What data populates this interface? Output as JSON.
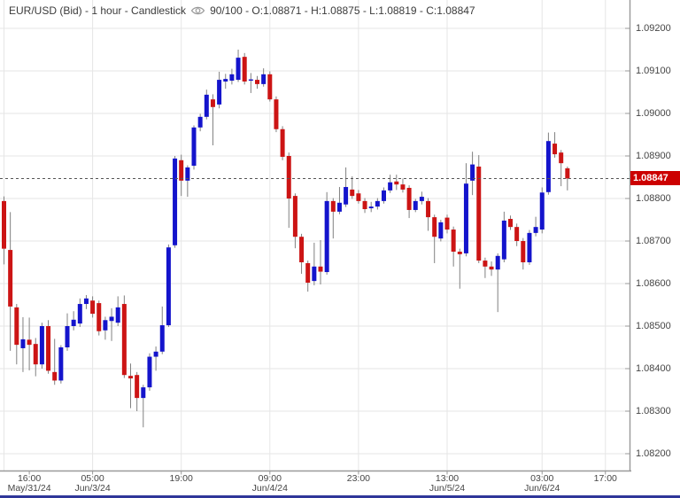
{
  "title_bar": {
    "instrument_title": "EUR/USD (Bid) - 1 hour - Candlestick",
    "eye_icon": "visibility-eye",
    "bars_info": "90/100 - O:1.08871 - H:1.08875 - L:1.08819 - C:1.08847"
  },
  "price_axis": {
    "labels": [
      "1.09200",
      "1.09100",
      "1.09000",
      "1.08900",
      "1.08800",
      "1.08700",
      "1.08600",
      "1.08500",
      "1.08400",
      "1.08300",
      "1.08200"
    ],
    "badge": "1.08847"
  },
  "time_axis": {
    "labels": [
      {
        "slot": 4,
        "time": "16:00",
        "date": "May/31/24"
      },
      {
        "slot": 14,
        "time": "05:00",
        "date": "Jun/3/24"
      },
      {
        "slot": 28,
        "time": "19:00",
        "date": ""
      },
      {
        "slot": 42,
        "time": "09:00",
        "date": "Jun/4/24"
      },
      {
        "slot": 56,
        "time": "23:00",
        "date": ""
      },
      {
        "slot": 70,
        "time": "13:00",
        "date": "Jun/5/24"
      },
      {
        "slot": 85,
        "time": "03:00",
        "date": "Jun/6/24"
      },
      {
        "slot": 95,
        "time": "17:00",
        "date": ""
      }
    ],
    "gridline_slots": [
      0,
      14,
      28,
      42,
      56,
      70,
      85,
      95
    ]
  },
  "colors": {
    "bull": "#1414cc",
    "bear": "#cc1414",
    "wick": "#808080",
    "grid": "#e6e6e6",
    "axis_line": "#999999",
    "text": "#454545",
    "price_line": "#555555",
    "badge_bg": "#cc0000",
    "badge_text": "#ffffff",
    "bottom_bar": "#2f3699"
  },
  "chart_data": {
    "type": "candlestick",
    "symbol": "EUR/USD (Bid)",
    "timeframe": "1 hour",
    "bars_visible": "90/100",
    "current_price": 1.08847,
    "last_bar": {
      "open": 1.08871,
      "high": 1.08875,
      "low": 1.08819,
      "close": 1.08847
    },
    "y_axis": {
      "min": 1.082,
      "max": 1.092,
      "tick_step": 0.001
    },
    "total_slots": 100,
    "legend_position": "none",
    "grid": true,
    "candles_ohlc": [
      [
        1.08794,
        1.08805,
        1.08645,
        1.08682
      ],
      [
        1.08679,
        1.08768,
        1.08442,
        1.08546
      ],
      [
        1.08544,
        1.08552,
        1.0841,
        1.08456
      ],
      [
        1.08448,
        1.08521,
        1.08392,
        1.08469
      ],
      [
        1.08468,
        1.0852,
        1.08396,
        1.08456
      ],
      [
        1.08458,
        1.08472,
        1.08382,
        1.0841
      ],
      [
        1.0841,
        1.08508,
        1.084,
        1.085
      ],
      [
        1.085,
        1.08514,
        1.08388,
        1.08395
      ],
      [
        1.08392,
        1.0847,
        1.08362,
        1.08372
      ],
      [
        1.08372,
        1.08455,
        1.08365,
        1.0845
      ],
      [
        1.0845,
        1.0853,
        1.08442,
        1.085
      ],
      [
        1.085,
        1.08535,
        1.0849,
        1.08515
      ],
      [
        1.08506,
        1.08565,
        1.08498,
        1.08552
      ],
      [
        1.08552,
        1.08573,
        1.0854,
        1.08565
      ],
      [
        1.0856,
        1.0857,
        1.0852,
        1.08529
      ],
      [
        1.08554,
        1.0856,
        1.08478,
        1.08488
      ],
      [
        1.0849,
        1.08522,
        1.08468,
        1.08514
      ],
      [
        1.08512,
        1.08542,
        1.08465,
        1.08522
      ],
      [
        1.08508,
        1.0857,
        1.085,
        1.08544
      ],
      [
        1.08552,
        1.08572,
        1.08378,
        1.08385
      ],
      [
        1.08383,
        1.08412,
        1.08307,
        1.08377
      ],
      [
        1.08385,
        1.08392,
        1.083,
        1.08331
      ],
      [
        1.08331,
        1.08362,
        1.08262,
        1.08356
      ],
      [
        1.08356,
        1.08436,
        1.08348,
        1.08428
      ],
      [
        1.08428,
        1.08452,
        1.08395,
        1.0844
      ],
      [
        1.0844,
        1.08546,
        1.08434,
        1.08502
      ],
      [
        1.08502,
        1.08692,
        1.08498,
        1.08685
      ],
      [
        1.0869,
        1.089,
        1.08684,
        1.08894
      ],
      [
        1.0889,
        1.08903,
        1.08806,
        1.08842
      ],
      [
        1.08842,
        1.08878,
        1.08804,
        1.08873
      ],
      [
        1.08877,
        1.08972,
        1.08868,
        1.08967
      ],
      [
        1.08967,
        1.08999,
        1.08958,
        1.08992
      ],
      [
        1.08992,
        1.09056,
        1.08986,
        1.09044
      ],
      [
        1.09033,
        1.09045,
        1.08925,
        1.09015
      ],
      [
        1.09021,
        1.09098,
        1.09012,
        1.09079
      ],
      [
        1.09075,
        1.09093,
        1.09058,
        1.09081
      ],
      [
        1.09077,
        1.09105,
        1.09068,
        1.09092
      ],
      [
        1.09079,
        1.0915,
        1.09074,
        1.09131
      ],
      [
        1.09133,
        1.09142,
        1.09068,
        1.09075
      ],
      [
        1.09077,
        1.09095,
        1.09048,
        1.0908
      ],
      [
        1.09079,
        1.09088,
        1.09058,
        1.09069
      ],
      [
        1.09069,
        1.09106,
        1.09063,
        1.09092
      ],
      [
        1.09092,
        1.09099,
        1.09028,
        1.09033
      ],
      [
        1.09033,
        1.0904,
        1.08956,
        1.08963
      ],
      [
        1.08963,
        1.0897,
        1.0889,
        1.08898
      ],
      [
        1.089,
        1.08908,
        1.08731,
        1.088
      ],
      [
        1.08806,
        1.08812,
        1.08683,
        1.0871
      ],
      [
        1.0871,
        1.08717,
        1.08623,
        1.0865
      ],
      [
        1.08648,
        1.08654,
        1.08581,
        1.08602
      ],
      [
        1.08606,
        1.08696,
        1.08596,
        1.0864
      ],
      [
        1.0864,
        1.08702,
        1.08598,
        1.08628
      ],
      [
        1.08627,
        1.08815,
        1.08621,
        1.08794
      ],
      [
        1.08794,
        1.08801,
        1.08706,
        1.08769
      ],
      [
        1.08769,
        1.08827,
        1.08763,
        1.0879
      ],
      [
        1.08786,
        1.08873,
        1.0878,
        1.08827
      ],
      [
        1.08821,
        1.08852,
        1.08799,
        1.08806
      ],
      [
        1.08812,
        1.0882,
        1.08788,
        1.08794
      ],
      [
        1.08794,
        1.08801,
        1.08766,
        1.08775
      ],
      [
        1.08777,
        1.08792,
        1.08768,
        1.08781
      ],
      [
        1.08781,
        1.08801,
        1.08774,
        1.08794
      ],
      [
        1.08794,
        1.08826,
        1.08788,
        1.08819
      ],
      [
        1.08819,
        1.08856,
        1.08813,
        1.08838
      ],
      [
        1.0884,
        1.08856,
        1.0882,
        1.08833
      ],
      [
        1.08833,
        1.08847,
        1.08814,
        1.08821
      ],
      [
        1.08825,
        1.08831,
        1.08754,
        1.08773
      ],
      [
        1.08773,
        1.08799,
        1.08768,
        1.08794
      ],
      [
        1.08794,
        1.08816,
        1.08786,
        1.08804
      ],
      [
        1.08794,
        1.08801,
        1.08724,
        1.08756
      ],
      [
        1.08756,
        1.08762,
        1.08648,
        1.0871
      ],
      [
        1.08706,
        1.0875,
        1.08699,
        1.08744
      ],
      [
        1.08755,
        1.08762,
        1.08718,
        1.08727
      ],
      [
        1.08727,
        1.08734,
        1.0864,
        1.08675
      ],
      [
        1.08675,
        1.08682,
        1.08588,
        1.08669
      ],
      [
        1.08671,
        1.08883,
        1.08664,
        1.08835
      ],
      [
        1.08842,
        1.0891,
        1.08808,
        1.0888
      ],
      [
        1.08875,
        1.08902,
        1.08648,
        1.08654
      ],
      [
        1.08654,
        1.08661,
        1.08613,
        1.0864
      ],
      [
        1.0864,
        1.08652,
        1.08618,
        1.08633
      ],
      [
        1.08633,
        1.08671,
        1.08533,
        1.08665
      ],
      [
        1.08657,
        1.08769,
        1.0865,
        1.08748
      ],
      [
        1.08752,
        1.0876,
        1.08726,
        1.08733
      ],
      [
        1.08733,
        1.08741,
        1.08688,
        1.087
      ],
      [
        1.087,
        1.08707,
        1.08633,
        1.0865
      ],
      [
        1.0865,
        1.08726,
        1.08644,
        1.08719
      ],
      [
        1.08719,
        1.08757,
        1.08711,
        1.08733
      ],
      [
        1.08727,
        1.08826,
        1.08718,
        1.08814
      ],
      [
        1.08815,
        1.08955,
        1.08809,
        1.08935
      ],
      [
        1.08929,
        1.08956,
        1.08896,
        1.08904
      ],
      [
        1.08908,
        1.08914,
        1.08829,
        1.08883
      ],
      [
        1.08871,
        1.08875,
        1.08819,
        1.08847
      ]
    ]
  }
}
